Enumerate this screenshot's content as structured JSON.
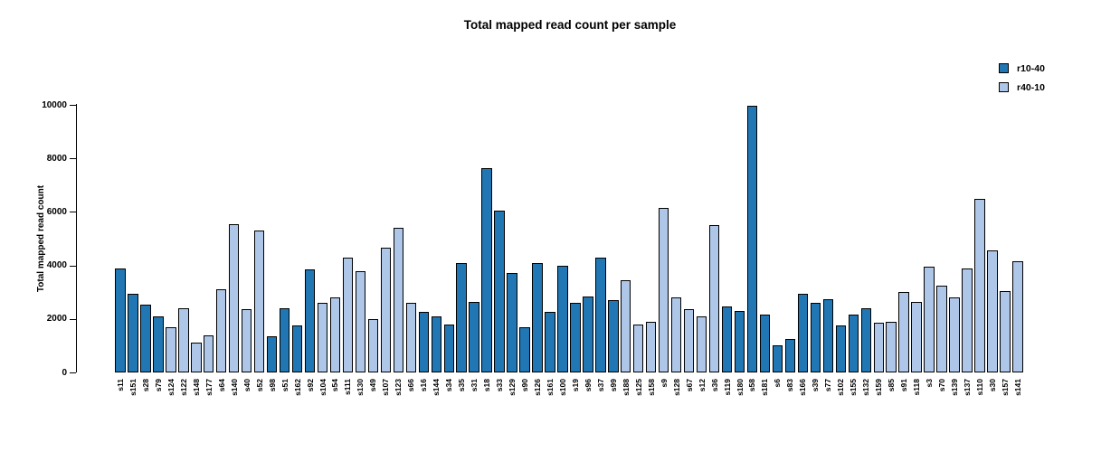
{
  "title": "Total mapped read count per sample",
  "legend": {
    "position": "top-right",
    "entries": [
      {
        "label": "r10-40",
        "color": "#2077b4"
      },
      {
        "label": "r40-10",
        "color": "#aec7e8"
      }
    ]
  },
  "chart_data": {
    "type": "bar",
    "title": "Total mapped read count per sample",
    "xlabel": "",
    "ylabel": "Total mapped read count",
    "ylim": [
      0,
      10000
    ],
    "yticks": [
      0,
      2000,
      4000,
      6000,
      8000,
      10000
    ],
    "grid": false,
    "legend_position": "top-right",
    "series": [
      {
        "name": "r10-40",
        "color": "#2077b4"
      },
      {
        "name": "r40-10",
        "color": "#aec7e8"
      }
    ],
    "bars": [
      {
        "label": "s11",
        "series": "r10-40",
        "value": 3900
      },
      {
        "label": "s151",
        "series": "r10-40",
        "value": 2950
      },
      {
        "label": "s28",
        "series": "r10-40",
        "value": 2550
      },
      {
        "label": "s79",
        "series": "r10-40",
        "value": 2100
      },
      {
        "label": "s124",
        "series": "r40-10",
        "value": 1700
      },
      {
        "label": "s122",
        "series": "r40-10",
        "value": 2400
      },
      {
        "label": "s148",
        "series": "r40-10",
        "value": 1100
      },
      {
        "label": "s177",
        "series": "r40-10",
        "value": 1400
      },
      {
        "label": "s64",
        "series": "r40-10",
        "value": 3100
      },
      {
        "label": "s140",
        "series": "r40-10",
        "value": 5550
      },
      {
        "label": "s40",
        "series": "r40-10",
        "value": 2350
      },
      {
        "label": "s52",
        "series": "r40-10",
        "value": 5300
      },
      {
        "label": "s98",
        "series": "r10-40",
        "value": 1350
      },
      {
        "label": "s51",
        "series": "r10-40",
        "value": 2400
      },
      {
        "label": "s162",
        "series": "r10-40",
        "value": 1750
      },
      {
        "label": "s92",
        "series": "r10-40",
        "value": 3850
      },
      {
        "label": "s104",
        "series": "r40-10",
        "value": 2600
      },
      {
        "label": "s54",
        "series": "r40-10",
        "value": 2800
      },
      {
        "label": "s111",
        "series": "r40-10",
        "value": 4300
      },
      {
        "label": "s130",
        "series": "r40-10",
        "value": 3800
      },
      {
        "label": "s49",
        "series": "r40-10",
        "value": 2000
      },
      {
        "label": "s107",
        "series": "r40-10",
        "value": 4650
      },
      {
        "label": "s123",
        "series": "r40-10",
        "value": 5400
      },
      {
        "label": "s66",
        "series": "r40-10",
        "value": 2600
      },
      {
        "label": "s16",
        "series": "r10-40",
        "value": 2250
      },
      {
        "label": "s144",
        "series": "r10-40",
        "value": 2100
      },
      {
        "label": "s34",
        "series": "r10-40",
        "value": 1800
      },
      {
        "label": "s35",
        "series": "r10-40",
        "value": 4100
      },
      {
        "label": "s31",
        "series": "r10-40",
        "value": 2650
      },
      {
        "label": "s18",
        "series": "r10-40",
        "value": 7650
      },
      {
        "label": "s33",
        "series": "r10-40",
        "value": 6050
      },
      {
        "label": "s129",
        "series": "r10-40",
        "value": 3700
      },
      {
        "label": "s90",
        "series": "r10-40",
        "value": 1700
      },
      {
        "label": "s126",
        "series": "r10-40",
        "value": 4100
      },
      {
        "label": "s161",
        "series": "r10-40",
        "value": 2250
      },
      {
        "label": "s100",
        "series": "r10-40",
        "value": 4000
      },
      {
        "label": "s19",
        "series": "r10-40",
        "value": 2600
      },
      {
        "label": "s96",
        "series": "r10-40",
        "value": 2850
      },
      {
        "label": "s37",
        "series": "r10-40",
        "value": 4300
      },
      {
        "label": "s99",
        "series": "r10-40",
        "value": 2700
      },
      {
        "label": "s188",
        "series": "r40-10",
        "value": 3450
      },
      {
        "label": "s125",
        "series": "r40-10",
        "value": 1800
      },
      {
        "label": "s158",
        "series": "r40-10",
        "value": 1900
      },
      {
        "label": "s9",
        "series": "r40-10",
        "value": 6150
      },
      {
        "label": "s128",
        "series": "r40-10",
        "value": 2800
      },
      {
        "label": "s67",
        "series": "r40-10",
        "value": 2350
      },
      {
        "label": "s12",
        "series": "r40-10",
        "value": 2100
      },
      {
        "label": "s36",
        "series": "r40-10",
        "value": 5500
      },
      {
        "label": "s119",
        "series": "r10-40",
        "value": 2450
      },
      {
        "label": "s180",
        "series": "r10-40",
        "value": 2300
      },
      {
        "label": "s58",
        "series": "r10-40",
        "value": 9950
      },
      {
        "label": "s181",
        "series": "r10-40",
        "value": 2150
      },
      {
        "label": "s6",
        "series": "r10-40",
        "value": 1000
      },
      {
        "label": "s83",
        "series": "r10-40",
        "value": 1250
      },
      {
        "label": "s166",
        "series": "r10-40",
        "value": 2950
      },
      {
        "label": "s39",
        "series": "r10-40",
        "value": 2600
      },
      {
        "label": "s77",
        "series": "r10-40",
        "value": 2750
      },
      {
        "label": "s102",
        "series": "r10-40",
        "value": 1750
      },
      {
        "label": "s155",
        "series": "r10-40",
        "value": 2150
      },
      {
        "label": "s132",
        "series": "r10-40",
        "value": 2400
      },
      {
        "label": "s159",
        "series": "r40-10",
        "value": 1850
      },
      {
        "label": "s85",
        "series": "r40-10",
        "value": 1900
      },
      {
        "label": "s91",
        "series": "r40-10",
        "value": 3000
      },
      {
        "label": "s118",
        "series": "r40-10",
        "value": 2650
      },
      {
        "label": "s3",
        "series": "r40-10",
        "value": 3950
      },
      {
        "label": "s70",
        "series": "r40-10",
        "value": 3250
      },
      {
        "label": "s139",
        "series": "r40-10",
        "value": 2800
      },
      {
        "label": "s137",
        "series": "r40-10",
        "value": 3900
      },
      {
        "label": "s110",
        "series": "r40-10",
        "value": 6500
      },
      {
        "label": "s30",
        "series": "r40-10",
        "value": 4550
      },
      {
        "label": "s157",
        "series": "r40-10",
        "value": 3050
      },
      {
        "label": "s141",
        "series": "r40-10",
        "value": 4150
      }
    ]
  }
}
